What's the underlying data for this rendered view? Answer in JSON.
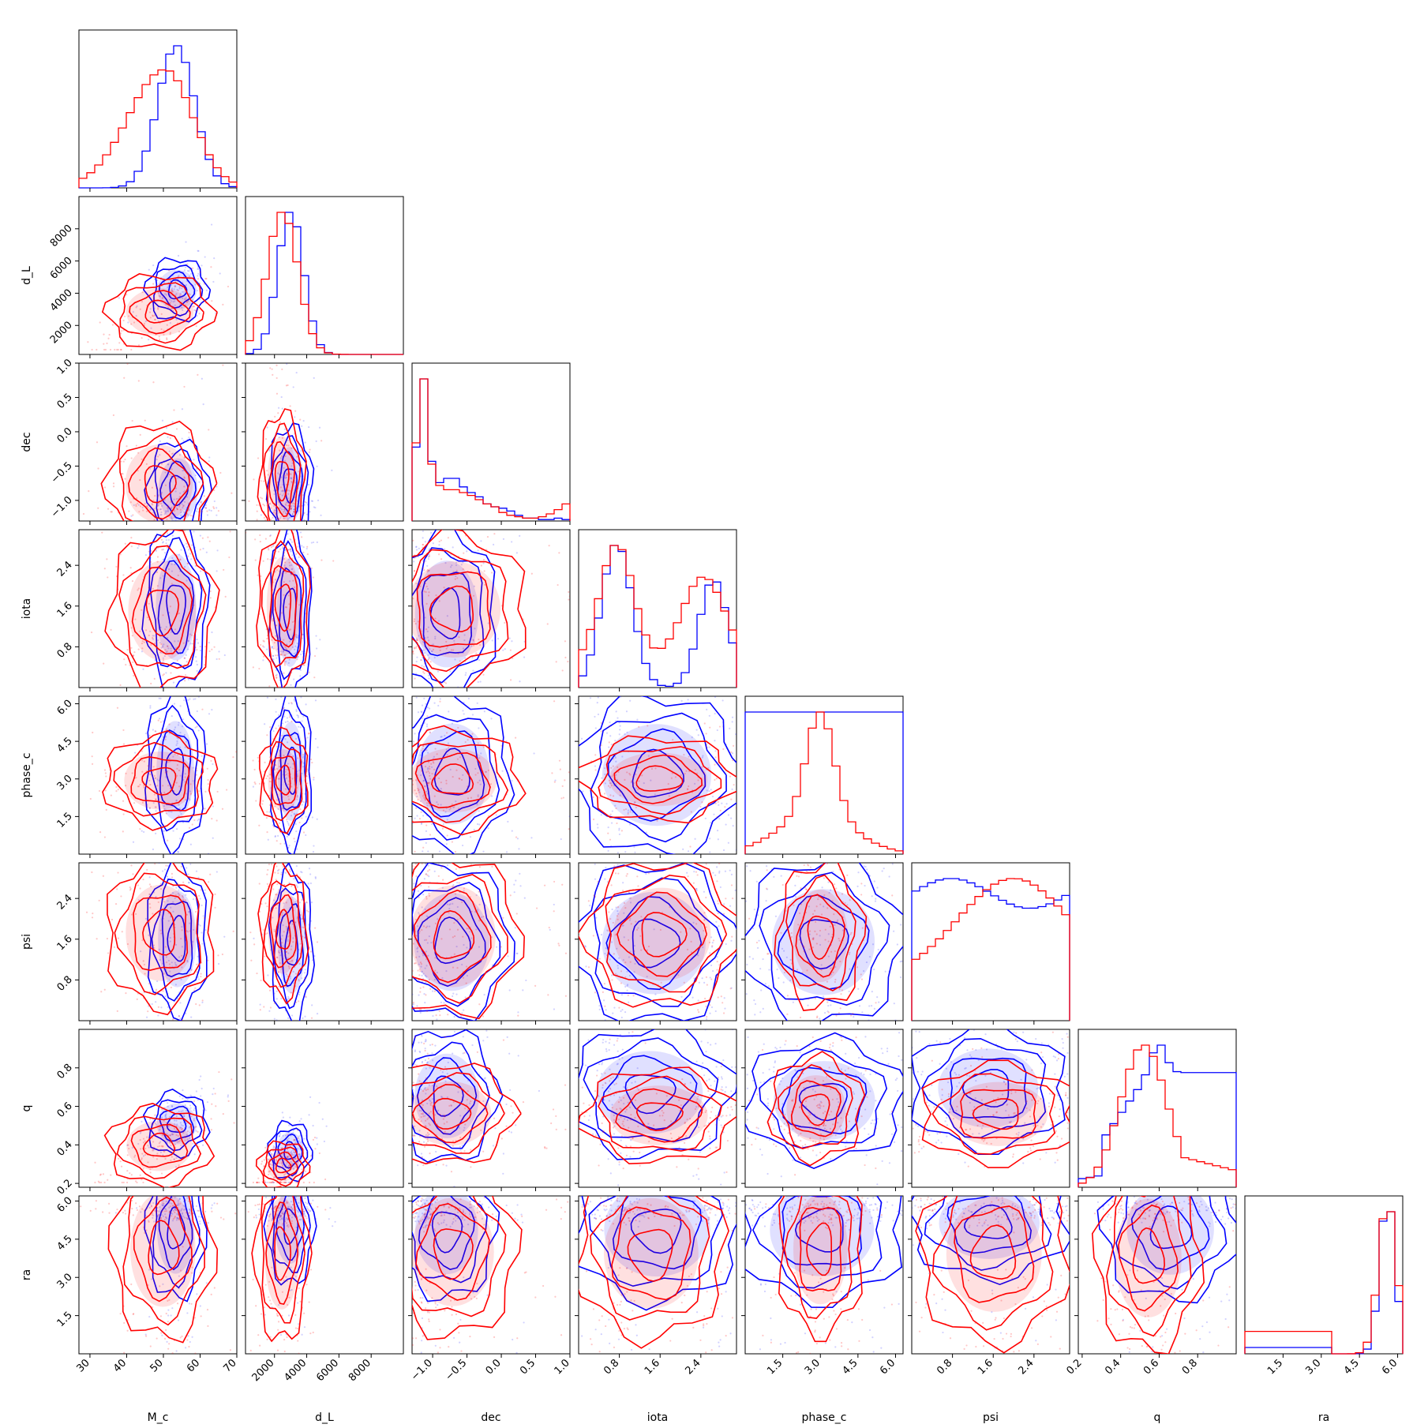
{
  "chart_data": {
    "type": "corner",
    "parameters": [
      "M_c",
      "d_L",
      "dec",
      "iota",
      "phase_c",
      "psi",
      "q",
      "ra"
    ],
    "series": [
      {
        "color": "#0000ff"
      },
      {
        "color": "#ff0000"
      }
    ],
    "ranges": {
      "M_c": [
        27,
        70
      ],
      "d_L": [
        200,
        10000
      ],
      "dec": [
        -1.3,
        1.0
      ],
      "iota": [
        0.0,
        3.1
      ],
      "phase_c": [
        0.0,
        6.3
      ],
      "psi": [
        0.0,
        3.1
      ],
      "q": [
        0.18,
        1.0
      ],
      "ra": [
        0.0,
        6.2
      ]
    },
    "xticks": {
      "M_c": [
        "30",
        "40",
        "50",
        "60",
        "70"
      ],
      "d_L": [
        "2000",
        "4000",
        "6000",
        "8000"
      ],
      "dec": [
        "−1.0",
        "−0.5",
        "0.0",
        "0.5",
        "1.0"
      ],
      "iota": [
        "0.8",
        "1.6",
        "2.4"
      ],
      "phase_c": [
        "1.5",
        "3.0",
        "4.5",
        "6.0"
      ],
      "psi": [
        "0.8",
        "1.6",
        "2.4"
      ],
      "q": [
        "0.2",
        "0.4",
        "0.6",
        "0.8"
      ],
      "ra": [
        "1.5",
        "3.0",
        "4.5",
        "6.0"
      ]
    },
    "yticks": {
      "d_L": [
        "2000",
        "4000",
        "6000",
        "8000"
      ],
      "dec": [
        "−1.0",
        "−0.5",
        "0.0",
        "0.5",
        "1.0"
      ],
      "iota": [
        "0.8",
        "1.6",
        "2.4"
      ],
      "phase_c": [
        "1.5",
        "3.0",
        "4.5",
        "6.0"
      ],
      "psi": [
        "0.8",
        "1.6",
        "2.4"
      ],
      "q": [
        "0.2",
        "0.4",
        "0.6",
        "0.8"
      ],
      "ra": [
        "1.5",
        "3.0",
        "4.5",
        "6.0"
      ]
    },
    "marginals": {
      "M_c": {
        "blue": {
          "mean": 53.5,
          "sd": 5.0
        },
        "red": {
          "mean": 50.5,
          "sd": 7.5,
          "skew_left": true
        }
      },
      "d_L": {
        "blue": {
          "mean": 3000,
          "sd": 800
        },
        "red": {
          "mean": 2500,
          "sd": 950
        }
      },
      "dec": {
        "blue": {
          "profile": [
            0.52,
            1.0,
            0.42,
            0.27,
            0.3,
            0.24,
            0.2,
            0.17,
            0.12,
            0.1,
            0.09,
            0.07,
            0.04,
            0.02,
            0.01,
            0.01,
            0.02,
            0.01
          ]
        },
        "red": {
          "profile": [
            0.55,
            1.0,
            0.4,
            0.25,
            0.22,
            0.2,
            0.18,
            0.15,
            0.12,
            0.1,
            0.06,
            0.04,
            0.03,
            0.02,
            0.03,
            0.05,
            0.08,
            0.12
          ]
        }
      },
      "iota": {
        "blue": {
          "modes": [
            [
              0.75,
              0.3,
              1.0
            ],
            [
              2.65,
              0.28,
              0.75
            ]
          ]
        },
        "red": {
          "modes": [
            [
              0.75,
              0.33,
              0.85
            ],
            [
              2.45,
              0.42,
              0.62
            ]
          ],
          "floor": 0.16
        }
      },
      "phase_c": {
        "blue": {
          "flat": 0.45
        },
        "red": {
          "modes": [
            [
              3.0,
              0.55,
              1.0
            ],
            [
              2.8,
              1.5,
              0.38
            ]
          ]
        }
      },
      "psi": {
        "blue": {
          "flat": 0.68,
          "wave": 0.08
        },
        "red": {
          "modes": [
            [
              2.0,
              1.1,
              0.85
            ]
          ],
          "floor": 0.32
        }
      },
      "q": {
        "blue": {
          "rising_from": 0.3,
          "plateau": 0.72
        },
        "red": {
          "modes": [
            [
              0.52,
              0.12,
              1.0
            ]
          ],
          "tail": 0.28
        }
      },
      "ra": {
        "blue": {
          "modes": [
            [
              5.6,
              0.3,
              1.0
            ]
          ],
          "low_band": 0.04
        },
        "red": {
          "modes": [
            [
              5.6,
              0.35,
              0.82
            ]
          ],
          "low_band": 0.12
        }
      }
    },
    "grid": false,
    "legend": "none"
  }
}
